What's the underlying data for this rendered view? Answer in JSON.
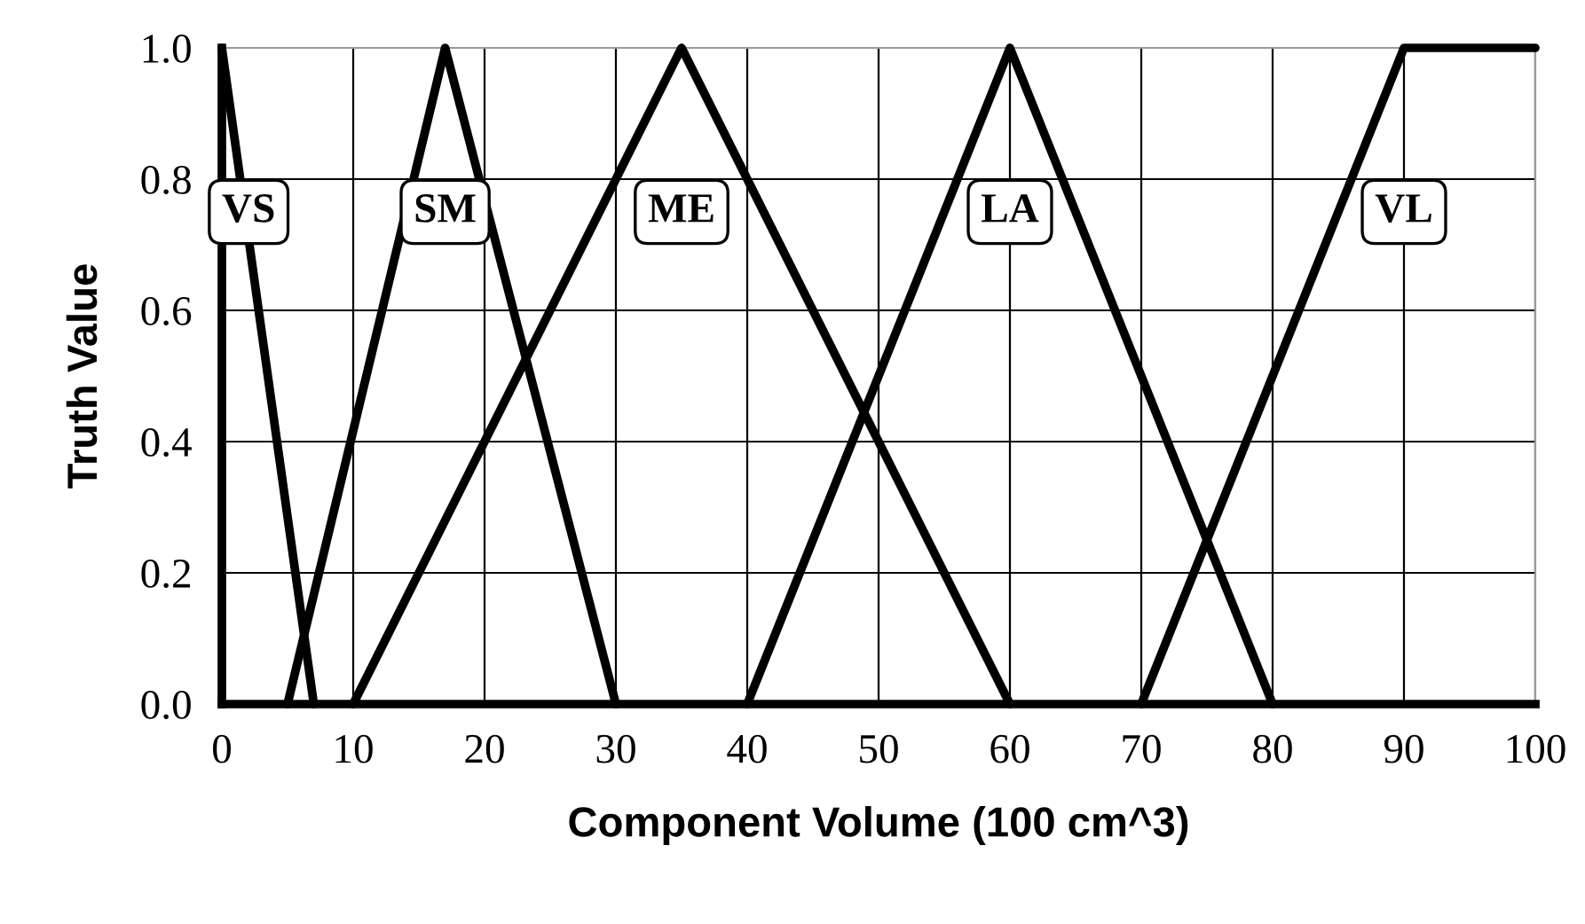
{
  "chart_data": {
    "type": "line",
    "xlabel": "Component Volume (100 cm^3)",
    "ylabel": "Truth Value",
    "xlim": [
      0,
      100
    ],
    "ylim": [
      0,
      1
    ],
    "xticks": [
      0,
      10,
      20,
      30,
      40,
      50,
      60,
      70,
      80,
      90,
      100
    ],
    "yticks": [
      {
        "value": 0,
        "label": "0.0"
      },
      {
        "value": 0.2,
        "label": "0.2"
      },
      {
        "value": 0.4,
        "label": "0.4"
      },
      {
        "value": 0.6,
        "label": "0.6"
      },
      {
        "value": 0.8,
        "label": "0.8"
      },
      {
        "value": 1,
        "label": "1.0"
      }
    ],
    "grid": true,
    "marker": "none",
    "line_style": "solid",
    "series": [
      {
        "name": "VS",
        "color": "#000000",
        "x": [
          0,
          7
        ],
        "values": [
          1,
          0
        ]
      },
      {
        "name": "SM",
        "color": "#000000",
        "x": [
          5,
          17,
          30
        ],
        "values": [
          0,
          1,
          0
        ]
      },
      {
        "name": "ME",
        "color": "#000000",
        "x": [
          10,
          35,
          60
        ],
        "values": [
          0,
          1,
          0
        ]
      },
      {
        "name": "LA",
        "color": "#000000",
        "x": [
          40,
          60,
          80
        ],
        "values": [
          0,
          1,
          0
        ]
      },
      {
        "name": "VL",
        "color": "#000000",
        "x": [
          70,
          90,
          100
        ],
        "values": [
          0,
          1,
          1
        ]
      }
    ]
  }
}
